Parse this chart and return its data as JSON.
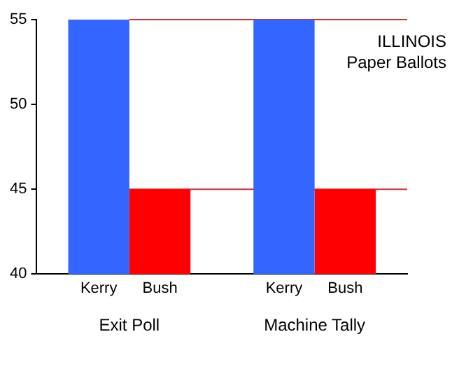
{
  "chart_data": {
    "type": "bar",
    "categories": [
      "Exit Poll",
      "Machine Tally"
    ],
    "series": [
      {
        "name": "Kerry",
        "color": "#3366ff",
        "values": [
          55,
          55
        ]
      },
      {
        "name": "Bush",
        "color": "#ff0000",
        "values": [
          45,
          45
        ]
      }
    ],
    "ylim": [
      40,
      55
    ],
    "yticks": [
      40,
      45,
      50,
      55
    ],
    "legend": false,
    "ref_lines": [
      {
        "axis": "y",
        "value": 55,
        "color": "#cc3333"
      },
      {
        "axis": "y",
        "value": 45,
        "color": "#cc3333"
      }
    ],
    "annotations": [
      "ILLINOIS",
      "Paper Ballots"
    ]
  }
}
